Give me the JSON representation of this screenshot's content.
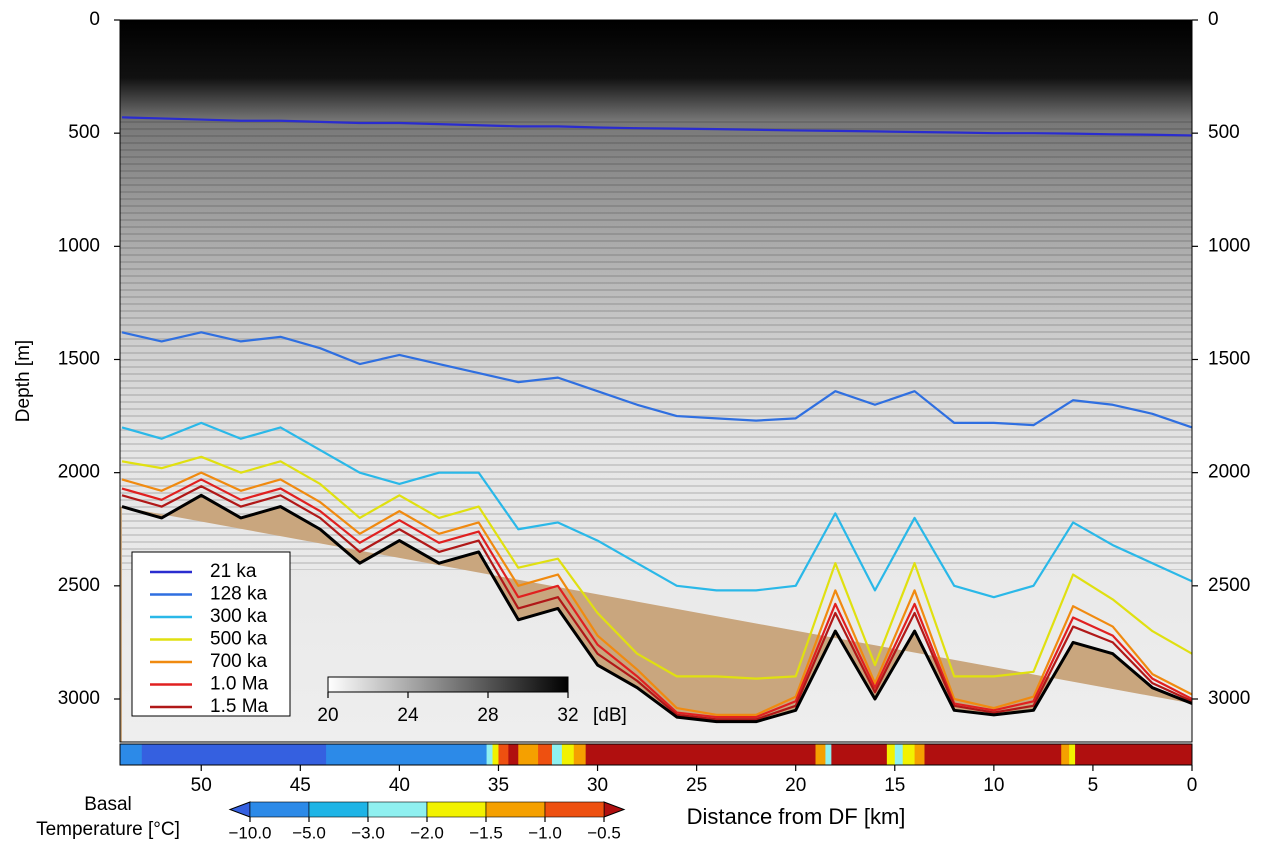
{
  "chart_data": {
    "type": "line",
    "ylabel": "Depth [m]",
    "xlabel": "Distance from DF [km]",
    "xlim": [
      54.1,
      0
    ],
    "ylim": [
      3190,
      0
    ],
    "xticks": [
      50,
      45,
      40,
      35,
      30,
      25,
      20,
      15,
      10,
      5,
      0
    ],
    "yticks": [
      0,
      500,
      1000,
      1500,
      2000,
      2500,
      3000
    ],
    "legend": "lower left",
    "x": [
      54,
      52,
      50,
      48,
      46,
      44,
      42,
      40,
      38,
      36,
      34,
      32,
      30,
      28,
      26,
      24,
      22,
      20,
      18,
      16,
      14,
      12,
      10,
      8,
      6,
      4,
      2,
      0
    ],
    "series": [
      {
        "name": "21 ka",
        "color": "#2a2ccf",
        "values": [
          430,
          435,
          440,
          445,
          445,
          450,
          455,
          455,
          460,
          465,
          470,
          470,
          475,
          478,
          480,
          482,
          485,
          488,
          490,
          492,
          495,
          497,
          500,
          500,
          502,
          505,
          507,
          510
        ]
      },
      {
        "name": "128 ka",
        "color": "#2f6fe0",
        "values": [
          1380,
          1420,
          1380,
          1420,
          1400,
          1450,
          1520,
          1480,
          1520,
          1560,
          1600,
          1580,
          1640,
          1700,
          1750,
          1760,
          1770,
          1760,
          1640,
          1700,
          1640,
          1780,
          1780,
          1790,
          1680,
          1700,
          1740,
          1800
        ]
      },
      {
        "name": "300 ka",
        "color": "#2ab8e8",
        "values": [
          1800,
          1850,
          1780,
          1850,
          1800,
          1900,
          2000,
          2050,
          2000,
          2000,
          2250,
          2220,
          2300,
          2400,
          2500,
          2520,
          2520,
          2500,
          2180,
          2520,
          2200,
          2500,
          2550,
          2500,
          2220,
          2320,
          2400,
          2480
        ]
      },
      {
        "name": "500 ka",
        "color": "#e0e010",
        "values": [
          1950,
          1980,
          1930,
          2000,
          1950,
          2050,
          2200,
          2100,
          2200,
          2150,
          2420,
          2380,
          2620,
          2800,
          2900,
          2900,
          2910,
          2900,
          2400,
          2850,
          2400,
          2900,
          2900,
          2880,
          2450,
          2560,
          2700,
          2800
        ]
      },
      {
        "name": "700 ka",
        "color": "#f08a10",
        "values": [
          2030,
          2080,
          2000,
          2080,
          2030,
          2130,
          2270,
          2170,
          2270,
          2220,
          2500,
          2450,
          2720,
          2870,
          3040,
          3070,
          3070,
          2990,
          2520,
          2930,
          2520,
          3000,
          3040,
          2990,
          2590,
          2680,
          2890,
          2980
        ]
      },
      {
        "name": "1.0 Ma",
        "color": "#e02020",
        "values": [
          2070,
          2120,
          2030,
          2120,
          2070,
          2170,
          2310,
          2210,
          2310,
          2260,
          2550,
          2500,
          2760,
          2900,
          3060,
          3080,
          3080,
          3010,
          2580,
          2950,
          2580,
          3020,
          3050,
          3010,
          2640,
          2720,
          2910,
          3000
        ]
      },
      {
        "name": "1.5 Ma",
        "color": "#b01818",
        "values": [
          2100,
          2150,
          2060,
          2150,
          2100,
          2200,
          2350,
          2250,
          2350,
          2300,
          2600,
          2550,
          2800,
          2920,
          3070,
          3090,
          3090,
          3030,
          2620,
          2970,
          2620,
          3030,
          3060,
          3030,
          2680,
          2750,
          2930,
          3010
        ]
      }
    ],
    "bed": {
      "color": "#000000",
      "fill": "#c9a67e",
      "values": [
        2150,
        2200,
        2100,
        2200,
        2150,
        2250,
        2400,
        2300,
        2400,
        2350,
        2650,
        2600,
        2850,
        2950,
        3080,
        3100,
        3100,
        3050,
        2700,
        3000,
        2700,
        3050,
        3070,
        3050,
        2750,
        2800,
        2950,
        3020
      ]
    },
    "intensity_colorbar": {
      "lim": [
        20,
        32
      ],
      "ticks": [
        20,
        24,
        28,
        32
      ],
      "label": "[dB]",
      "colors": [
        "#ffffff",
        "#000000"
      ]
    },
    "temperature_colorbar": {
      "label": [
        "Basal",
        "Temperature [°C]"
      ],
      "ticks": [
        {
          "value": -10,
          "label": "−10.0"
        },
        {
          "value": -5,
          "label": "−5.0"
        },
        {
          "value": -3,
          "label": "−3.0"
        },
        {
          "value": -2,
          "label": "−2.0"
        },
        {
          "value": -1.5,
          "label": "−1.5"
        },
        {
          "value": -1,
          "label": "−1.0"
        },
        {
          "value": -0.5,
          "label": "−0.5"
        }
      ],
      "colors": [
        "#3560e0",
        "#2c8ae8",
        "#1eb4e6",
        "#8ff0f0",
        "#f2f200",
        "#f5a000",
        "#ee5010",
        "#b00f0f"
      ]
    },
    "temperature_strip": [
      {
        "from": 54.1,
        "to": 53.0,
        "value": -8
      },
      {
        "from": 53.0,
        "to": 43.7,
        "value": -11
      },
      {
        "from": 43.7,
        "to": 35.6,
        "value": -7
      },
      {
        "from": 35.6,
        "to": 35.3,
        "value": -2.5
      },
      {
        "from": 35.3,
        "to": 35.0,
        "value": -1.8
      },
      {
        "from": 35.0,
        "to": 34.5,
        "value": -0.8
      },
      {
        "from": 34.5,
        "to": 34.0,
        "value": -0.3
      },
      {
        "from": 34.0,
        "to": 33.0,
        "value": -1.2
      },
      {
        "from": 33.0,
        "to": 32.3,
        "value": -0.7
      },
      {
        "from": 32.3,
        "to": 31.8,
        "value": -2.5
      },
      {
        "from": 31.8,
        "to": 31.2,
        "value": -1.8
      },
      {
        "from": 31.2,
        "to": 30.6,
        "value": -1.2
      },
      {
        "from": 30.6,
        "to": 19.0,
        "value": -0.3
      },
      {
        "from": 19.0,
        "to": 18.5,
        "value": -1.2
      },
      {
        "from": 18.5,
        "to": 18.2,
        "value": -2.5
      },
      {
        "from": 18.2,
        "to": 15.4,
        "value": -0.3
      },
      {
        "from": 15.4,
        "to": 15.0,
        "value": -1.8
      },
      {
        "from": 15.0,
        "to": 14.6,
        "value": -2.5
      },
      {
        "from": 14.6,
        "to": 14.0,
        "value": -1.8
      },
      {
        "from": 14.0,
        "to": 13.5,
        "value": -1.2
      },
      {
        "from": 13.5,
        "to": 6.6,
        "value": -0.3
      },
      {
        "from": 6.6,
        "to": 6.2,
        "value": -1.2
      },
      {
        "from": 6.2,
        "to": 5.9,
        "value": -1.8
      },
      {
        "from": 5.9,
        "to": 0,
        "value": -0.3
      }
    ]
  }
}
